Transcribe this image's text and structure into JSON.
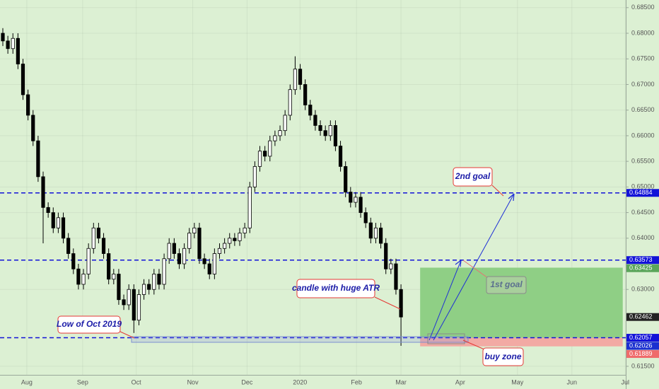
{
  "chart_data": {
    "type": "candlestick",
    "open": [
      0.68,
      0.6785,
      0.677,
      0.679,
      0.674,
      0.668,
      0.664,
      0.659,
      0.652,
      0.646,
      0.645,
      0.642,
      0.644,
      0.64,
      0.637,
      0.634,
      0.631,
      0.633,
      0.638,
      0.642,
      0.64,
      0.637,
      0.632,
      0.633,
      0.628,
      0.627,
      0.63,
      0.624,
      0.629,
      0.631,
      0.63,
      0.633,
      0.631,
      0.636,
      0.639,
      0.637,
      0.635,
      0.638,
      0.641,
      0.642,
      0.636,
      0.635,
      0.633,
      0.637,
      0.638,
      0.639,
      0.64,
      0.6395,
      0.641,
      0.642,
      0.65,
      0.654,
      0.657,
      0.656,
      0.659,
      0.66,
      0.661,
      0.664,
      0.669,
      0.673,
      0.67,
      0.666,
      0.664,
      0.662,
      0.661,
      0.66,
      0.662,
      0.658,
      0.654,
      0.649,
      0.647,
      0.648,
      0.645,
      0.643,
      0.64,
      0.642,
      0.639,
      0.634,
      0.635,
      0.63
    ],
    "high": [
      0.681,
      0.6795,
      0.68,
      0.68,
      0.675,
      0.669,
      0.665,
      0.66,
      0.653,
      0.647,
      0.646,
      0.645,
      0.645,
      0.641,
      0.638,
      0.635,
      0.634,
      0.639,
      0.643,
      0.643,
      0.641,
      0.638,
      0.634,
      0.634,
      0.629,
      0.631,
      0.631,
      0.63,
      0.632,
      0.632,
      0.634,
      0.634,
      0.637,
      0.64,
      0.64,
      0.638,
      0.639,
      0.642,
      0.643,
      0.643,
      0.637,
      0.636,
      0.638,
      0.639,
      0.64,
      0.641,
      0.641,
      0.642,
      0.643,
      0.651,
      0.655,
      0.658,
      0.658,
      0.66,
      0.661,
      0.662,
      0.665,
      0.67,
      0.6755,
      0.674,
      0.671,
      0.667,
      0.665,
      0.663,
      0.662,
      0.663,
      0.663,
      0.659,
      0.655,
      0.65,
      0.649,
      0.649,
      0.646,
      0.644,
      0.643,
      0.643,
      0.64,
      0.636,
      0.636,
      0.631
    ],
    "low": [
      0.6775,
      0.676,
      0.676,
      0.673,
      0.667,
      0.663,
      0.658,
      0.651,
      0.639,
      0.644,
      0.641,
      0.641,
      0.639,
      0.636,
      0.633,
      0.63,
      0.63,
      0.632,
      0.637,
      0.639,
      0.636,
      0.631,
      0.631,
      0.627,
      0.626,
      0.626,
      0.6215,
      0.623,
      0.628,
      0.629,
      0.629,
      0.63,
      0.63,
      0.635,
      0.636,
      0.634,
      0.634,
      0.637,
      0.64,
      0.635,
      0.634,
      0.632,
      0.632,
      0.636,
      0.637,
      0.638,
      0.6385,
      0.6385,
      0.64,
      0.641,
      0.649,
      0.653,
      0.655,
      0.655,
      0.658,
      0.659,
      0.66,
      0.663,
      0.668,
      0.669,
      0.665,
      0.663,
      0.661,
      0.66,
      0.659,
      0.659,
      0.657,
      0.653,
      0.648,
      0.646,
      0.646,
      0.644,
      0.642,
      0.639,
      0.639,
      0.638,
      0.633,
      0.633,
      0.629,
      0.619
    ],
    "close": [
      0.6785,
      0.677,
      0.679,
      0.674,
      0.668,
      0.664,
      0.659,
      0.652,
      0.646,
      0.645,
      0.642,
      0.644,
      0.64,
      0.637,
      0.634,
      0.631,
      0.633,
      0.638,
      0.642,
      0.64,
      0.637,
      0.632,
      0.633,
      0.628,
      0.627,
      0.63,
      0.624,
      0.629,
      0.631,
      0.63,
      0.633,
      0.631,
      0.636,
      0.639,
      0.637,
      0.635,
      0.638,
      0.641,
      0.642,
      0.636,
      0.635,
      0.633,
      0.637,
      0.638,
      0.639,
      0.64,
      0.6395,
      0.641,
      0.642,
      0.65,
      0.654,
      0.657,
      0.656,
      0.659,
      0.66,
      0.661,
      0.664,
      0.669,
      0.673,
      0.67,
      0.666,
      0.664,
      0.662,
      0.661,
      0.66,
      0.662,
      0.658,
      0.654,
      0.649,
      0.647,
      0.648,
      0.645,
      0.643,
      0.64,
      0.642,
      0.639,
      0.634,
      0.635,
      0.63,
      0.62462
    ],
    "up_color": "#ffffff",
    "down_color": "#000000",
    "xlim": [
      -0.56,
      123.6
    ],
    "ylim": [
      0.61333,
      0.68649
    ],
    "xticks": [
      {
        "value": 4.76,
        "label": "Aug"
      },
      {
        "value": 15.83,
        "label": "Sep"
      },
      {
        "value": 26.47,
        "label": "Oct"
      },
      {
        "value": 37.68,
        "label": "Nov"
      },
      {
        "value": 48.46,
        "label": "Dec"
      },
      {
        "value": 58.96,
        "label": "2020"
      },
      {
        "value": 70.17,
        "label": "Feb"
      },
      {
        "value": 79.0,
        "label": "Mar"
      },
      {
        "value": 90.76,
        "label": "Apr"
      },
      {
        "value": 102.1,
        "label": "May"
      },
      {
        "value": 112.9,
        "label": "Jun"
      },
      {
        "value": 123.5,
        "label": "Jul"
      }
    ],
    "yticks": [
      {
        "value": 0.685,
        "label": "0.68500"
      },
      {
        "value": 0.68,
        "label": "0.68000"
      },
      {
        "value": 0.675,
        "label": "0.67500"
      },
      {
        "value": 0.67,
        "label": "0.67000"
      },
      {
        "value": 0.665,
        "label": "0.66500"
      },
      {
        "value": 0.66,
        "label": "0.66000"
      },
      {
        "value": 0.655,
        "label": "0.65500"
      },
      {
        "value": 0.65,
        "label": "0.65000"
      },
      {
        "value": 0.645,
        "label": "0.64500"
      },
      {
        "value": 0.64,
        "label": "0.64000"
      },
      {
        "value": 0.63,
        "label": "0.63000"
      },
      {
        "value": 0.615,
        "label": "0.61500"
      }
    ],
    "grid": true,
    "levels": [
      {
        "value": 0.64884,
        "color": "#1212d8",
        "dashed": true
      },
      {
        "value": 0.63573,
        "color": "#1212d8",
        "dashed": true
      },
      {
        "value": 0.63425,
        "color": "#5aa55a",
        "dashed": false
      },
      {
        "value": 0.62462,
        "color": "#222222",
        "dashed": false
      },
      {
        "value": 0.62057,
        "color": "#1212d8",
        "dashed": true
      },
      {
        "value": 0.62026,
        "color": "#1a2fd0",
        "dashed": false
      },
      {
        "value": 0.61889,
        "color": "#ef6b6b",
        "dashed": false
      }
    ],
    "position": {
      "start": 82.8,
      "end": 123.0,
      "entry": 0.62057,
      "target": 0.63425,
      "stop": 0.61889,
      "target_color": "#8fcf85",
      "stop_color": "#f2aaa4"
    },
    "annotations": [
      {
        "text": "2nd goal"
      },
      {
        "text": "1st goal"
      },
      {
        "text": "candle with huge ATR"
      },
      {
        "text": "Low of Oct 2019"
      },
      {
        "text": "buy zone"
      }
    ]
  }
}
